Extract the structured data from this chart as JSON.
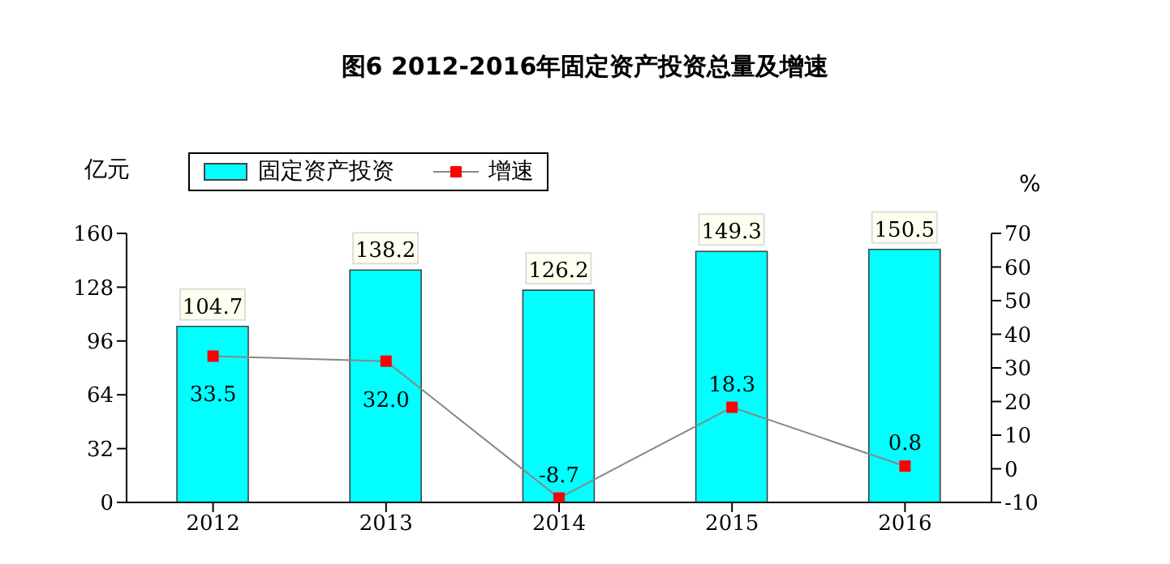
{
  "chart_data": {
    "type": "bar",
    "title": "图6  2012-2016年固定资产投资总量及增速",
    "ylabel": "亿元",
    "y2label": "%",
    "categories": [
      "2012",
      "2013",
      "2014",
      "2015",
      "2016"
    ],
    "series": [
      {
        "name": "固定资产投资",
        "color": "#00ffff",
        "values": [
          104.7,
          138.2,
          126.2,
          149.3,
          150.5
        ],
        "value_labels": [
          "104.7",
          "138.2",
          "126.2",
          "149.3",
          "150.5"
        ]
      },
      {
        "name": "增速",
        "type": "line",
        "axis": "y2",
        "color": "#ff0000",
        "marker": "square",
        "values": [
          33.5,
          32.0,
          -8.7,
          18.3,
          0.8
        ],
        "value_labels": [
          "33.5",
          "32.0",
          "-8.7",
          "18.3",
          "0.8"
        ]
      }
    ],
    "ylim": [
      0,
      160
    ],
    "yticks": [
      0,
      32,
      64,
      96,
      128,
      160
    ],
    "y2lim": [
      -10,
      70
    ],
    "y2ticks": [
      -10,
      0,
      10,
      20,
      30,
      40,
      50,
      60,
      70
    ],
    "grid": false,
    "legend": "top"
  }
}
